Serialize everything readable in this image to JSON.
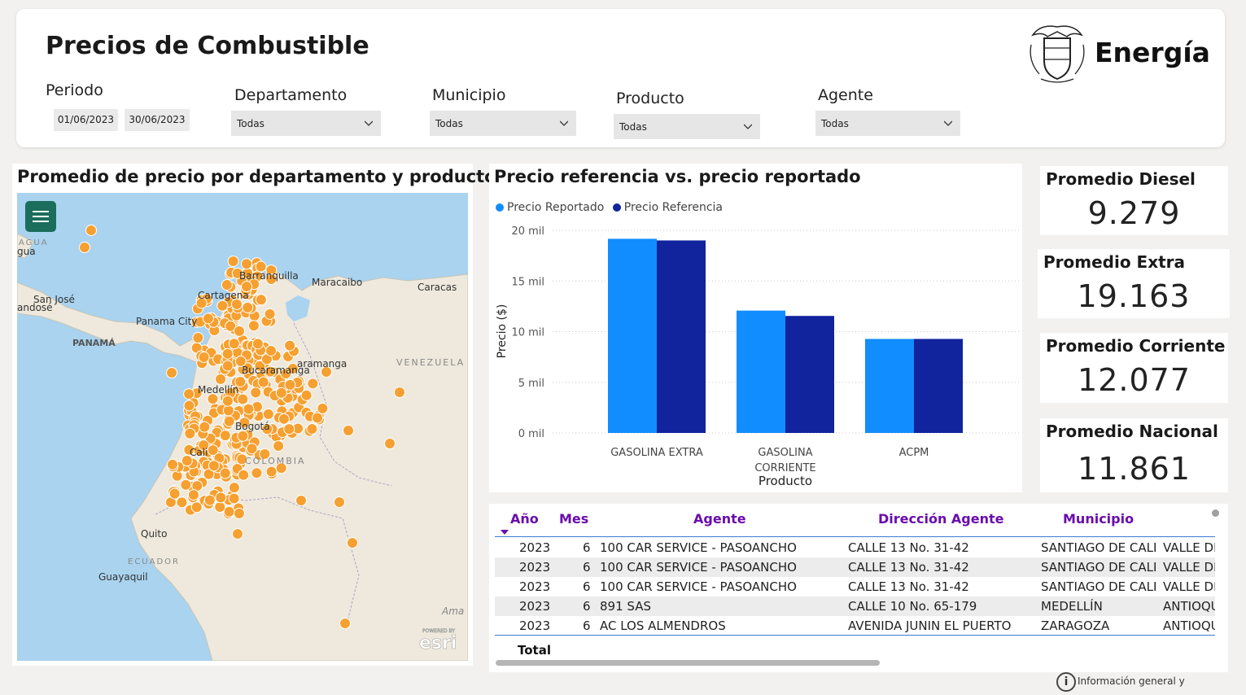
{
  "header": {
    "title": "Precios de Combustible",
    "brand": "Energía",
    "filters": {
      "periodo": {
        "label": "Periodo",
        "start": "01/06/2023",
        "end": "30/06/2023"
      },
      "departamento": {
        "label": "Departamento",
        "value": "Todas"
      },
      "municipio": {
        "label": "Municipio",
        "value": "Todas"
      },
      "producto": {
        "label": "Producto",
        "value": "Todas"
      },
      "agente": {
        "label": "Agente",
        "value": "Todas"
      }
    }
  },
  "map": {
    "title": "Promedio de precio por departamento y producto",
    "labels": [
      "Barranquilla",
      "Cartagena",
      "Maracaibo",
      "Caracas",
      "San José",
      "Panama City",
      "PANAMÁ",
      "Bucaramanga",
      "VENEZUELA",
      "Medellín",
      "Bogotá",
      "COLOMBIA",
      "Cali",
      "Quito",
      "ECUADOR",
      "Guayaquil",
      "Ama",
      "AGUA",
      "gua",
      "andosé",
      "aramanga"
    ],
    "attribution": "esri",
    "attribution_small": "POWERED BY",
    "colors": {
      "dot": "#f5a030",
      "dot_stroke": "#ffffff",
      "land": "#eee9dc",
      "water": "#a9d3ef"
    }
  },
  "chart": {
    "title": "Precio referencia vs. precio reportado",
    "chart_data": {
      "type": "bar",
      "title": "Precio referencia vs. precio reportado",
      "xlabel": "Producto",
      "ylabel": "Precio ($)",
      "categories": [
        "GASOLINA EXTRA",
        "GASOLINA CORRIENTE",
        "ACPM"
      ],
      "series": [
        {
          "name": "Precio Reportado",
          "values": [
            19163,
            12077,
            9279
          ],
          "color": "#118dff"
        },
        {
          "name": "Precio Referencia",
          "values": [
            19000,
            11550,
            9280
          ],
          "color": "#12239e"
        }
      ],
      "ylim": [
        0,
        20000
      ],
      "yticks": [
        "0 mil",
        "5 mil",
        "10 mil",
        "15 mil",
        "20 mil"
      ],
      "legend": "top-left",
      "grid": true
    }
  },
  "kpis": [
    {
      "label": "Promedio Diesel",
      "value": "9.279"
    },
    {
      "label": "Promedio Extra",
      "value": "19.163"
    },
    {
      "label": "Promedio Corriente",
      "value": "12.077"
    },
    {
      "label": "Promedio Nacional",
      "value": "11.861"
    }
  ],
  "table": {
    "headers": [
      "Año",
      "Mes",
      "Agente",
      "Dirección Agente",
      "Municipio"
    ],
    "rows": [
      [
        "2023",
        "6",
        "100 CAR SERVICE - PASOANCHO",
        "CALLE 13 No. 31-42",
        "SANTIAGO DE CALI",
        "VALLE DE"
      ],
      [
        "2023",
        "6",
        "100 CAR SERVICE - PASOANCHO",
        "CALLE 13 No. 31-42",
        "SANTIAGO DE CALI",
        "VALLE DE"
      ],
      [
        "2023",
        "6",
        "100 CAR SERVICE - PASOANCHO",
        "CALLE 13 No. 31-42",
        "SANTIAGO DE CALI",
        "VALLE DE"
      ],
      [
        "2023",
        "6",
        "891 SAS",
        "CALLE 10 No. 65-179",
        "MEDELLÍN",
        "ANTIOQU"
      ],
      [
        "2023",
        "6",
        "AC LOS ALMENDROS",
        "AVENIDA JUNIN EL PUERTO",
        "ZARAGOZA",
        "ANTIOQU"
      ]
    ],
    "total_label": "Total"
  },
  "footer": {
    "text": "Información general y lineamientos.",
    "icon": "info-icon"
  }
}
